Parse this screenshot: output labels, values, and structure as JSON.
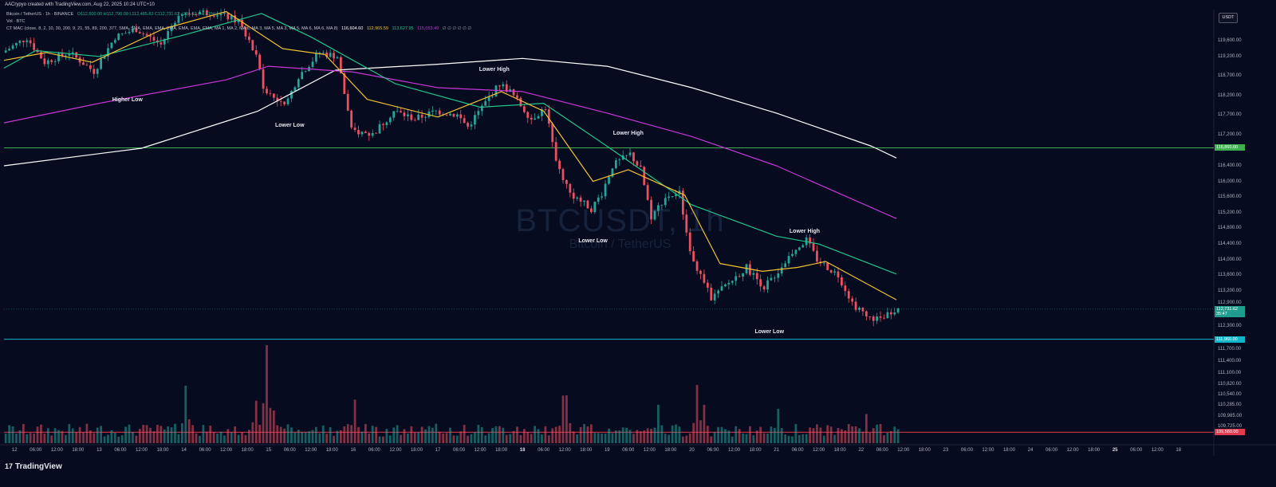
{
  "header": {
    "created_by": "AACrypyo created with TradingView.com, Aug 22, 2025 10:24 UTC+10",
    "symbol_line": "Bitcoin / TetherUS · 1h · BINANCE",
    "ohlc": "O112,500.00 H112,790.00 L112,485.82 C112,731.62 +231.62 (+0.21%)",
    "vol_line": "Vol · BTC",
    "indicator_line": "CT MAC (close, 8, 2, 10, 30, 200, 9, 21, 55, 89, 200, 377, SMA, SMA, EMA, EMA, EMA, EMA, EMA, EMA, MA 1, MA 2, MA 6, MA 3, MA 5, MA 3, MA 5, MA 6, MA 6, MA 8)",
    "indicator_values": [
      {
        "text": "116,604.60",
        "color": "#ffffff"
      },
      {
        "text": "112,965.59",
        "color": "#f2c12e"
      },
      {
        "text": "113,627.95",
        "color": "#22c58b"
      },
      {
        "text": "115,053.49",
        "color": "#c636d8"
      },
      {
        "text": "∅ ∅ ∅ ∅ ∅ ∅",
        "color": "#9aa0ad"
      }
    ]
  },
  "watermark": {
    "symbol": "BTCUSDT, 1h",
    "name": "Bitcoin / TetherUS"
  },
  "currency_button": "USDT",
  "annotations": [
    {
      "text": "Higher Low",
      "x": "2025-08-13T08:00",
      "y": 118070
    },
    {
      "text": "Lower Low",
      "x": "2025-08-15T06:00",
      "y": 117430
    },
    {
      "text": "Lower High",
      "x": "2025-08-17T16:00",
      "y": 118840
    },
    {
      "text": "Lower High",
      "x": "2025-08-19T06:00",
      "y": 117210
    },
    {
      "text": "Lower Low",
      "x": "2025-08-18T20:00",
      "y": 114460
    },
    {
      "text": "Lower High",
      "x": "2025-08-21T08:00",
      "y": 114710
    },
    {
      "text": "Lower Low",
      "x": "2025-08-20T22:00",
      "y": 112135
    }
  ],
  "chart_data": {
    "type": "candlestick",
    "symbol": "BTCUSDT",
    "interval": "1h",
    "exchange": "BINANCE",
    "ylim": [
      109300,
      120400
    ],
    "xlim": [
      "2025-08-11T21:00",
      "2025-08-26T04:00"
    ],
    "y_ticks": [
      "119,600.00",
      "119,200.00",
      "118,700.00",
      "118,200.00",
      "117,700.00",
      "117,200.00",
      "116,400.00",
      "116,000.00",
      "115,600.00",
      "115,200.00",
      "114,800.00",
      "114,400.00",
      "114,000.00",
      "113,600.00",
      "113,200.00",
      "112,900.00",
      "112,300.00",
      "111,700.00",
      "111,400.00",
      "111,100.00",
      "110,820.00",
      "110,540.00",
      "110,285.00",
      "109,985.00",
      "109,725.00"
    ],
    "x_ticks": [
      {
        "label": "12",
        "t": "2025-08-12T00:00",
        "day": false
      },
      {
        "label": "06:00",
        "t": "2025-08-12T06:00"
      },
      {
        "label": "12:00",
        "t": "2025-08-12T12:00"
      },
      {
        "label": "18:00",
        "t": "2025-08-12T18:00"
      },
      {
        "label": "13",
        "t": "2025-08-13T00:00"
      },
      {
        "label": "06:00",
        "t": "2025-08-13T06:00"
      },
      {
        "label": "12:00",
        "t": "2025-08-13T12:00"
      },
      {
        "label": "18:00",
        "t": "2025-08-13T18:00"
      },
      {
        "label": "14",
        "t": "2025-08-14T00:00"
      },
      {
        "label": "06:00",
        "t": "2025-08-14T06:00"
      },
      {
        "label": "12:00",
        "t": "2025-08-14T12:00"
      },
      {
        "label": "18:00",
        "t": "2025-08-14T18:00"
      },
      {
        "label": "15",
        "t": "2025-08-15T00:00"
      },
      {
        "label": "06:00",
        "t": "2025-08-15T06:00"
      },
      {
        "label": "12:00",
        "t": "2025-08-15T12:00"
      },
      {
        "label": "18:00",
        "t": "2025-08-15T18:00"
      },
      {
        "label": "16",
        "t": "2025-08-16T00:00"
      },
      {
        "label": "06:00",
        "t": "2025-08-16T06:00"
      },
      {
        "label": "12:00",
        "t": "2025-08-16T12:00"
      },
      {
        "label": "18:00",
        "t": "2025-08-16T18:00"
      },
      {
        "label": "17",
        "t": "2025-08-17T00:00"
      },
      {
        "label": "06:00",
        "t": "2025-08-17T06:00"
      },
      {
        "label": "12:00",
        "t": "2025-08-17T12:00"
      },
      {
        "label": "18:00",
        "t": "2025-08-17T18:00"
      },
      {
        "label": "18",
        "t": "2025-08-18T00:00",
        "day": true
      },
      {
        "label": "06:00",
        "t": "2025-08-18T06:00"
      },
      {
        "label": "12:00",
        "t": "2025-08-18T12:00"
      },
      {
        "label": "18:00",
        "t": "2025-08-18T18:00"
      },
      {
        "label": "19",
        "t": "2025-08-19T00:00"
      },
      {
        "label": "06:00",
        "t": "2025-08-19T06:00"
      },
      {
        "label": "12:00",
        "t": "2025-08-19T12:00"
      },
      {
        "label": "18:00",
        "t": "2025-08-19T18:00"
      },
      {
        "label": "20",
        "t": "2025-08-20T00:00"
      },
      {
        "label": "06:00",
        "t": "2025-08-20T06:00"
      },
      {
        "label": "12:00",
        "t": "2025-08-20T12:00"
      },
      {
        "label": "18:00",
        "t": "2025-08-20T18:00"
      },
      {
        "label": "21",
        "t": "2025-08-21T00:00"
      },
      {
        "label": "06:00",
        "t": "2025-08-21T06:00"
      },
      {
        "label": "12:00",
        "t": "2025-08-21T12:00"
      },
      {
        "label": "18:00",
        "t": "2025-08-21T18:00"
      },
      {
        "label": "22",
        "t": "2025-08-22T00:00"
      },
      {
        "label": "06:00",
        "t": "2025-08-22T06:00"
      },
      {
        "label": "12:00",
        "t": "2025-08-22T12:00"
      },
      {
        "label": "18:00",
        "t": "2025-08-22T18:00"
      },
      {
        "label": "23",
        "t": "2025-08-23T00:00"
      },
      {
        "label": "06:00",
        "t": "2025-08-23T06:00"
      },
      {
        "label": "12:00",
        "t": "2025-08-23T12:00"
      },
      {
        "label": "18:00",
        "t": "2025-08-23T18:00"
      },
      {
        "label": "24",
        "t": "2025-08-24T00:00"
      },
      {
        "label": "06:00",
        "t": "2025-08-24T06:00"
      },
      {
        "label": "12:00",
        "t": "2025-08-24T12:00"
      },
      {
        "label": "18:00",
        "t": "2025-08-24T18:00"
      },
      {
        "label": "25",
        "t": "2025-08-25T00:00",
        "day": true
      },
      {
        "label": "06:00",
        "t": "2025-08-25T06:00"
      },
      {
        "label": "12:00",
        "t": "2025-08-25T12:00"
      },
      {
        "label": "18",
        "t": "2025-08-25T18:00"
      }
    ],
    "horizontal_levels": [
      {
        "price": 116860,
        "label": "116,860.00",
        "color": "#3fb04f"
      },
      {
        "price": 111960,
        "label": "111,960.00",
        "color": "#12b5c8"
      },
      {
        "price": 109580,
        "label": "109,580.00",
        "color": "#e23b4f"
      }
    ],
    "current_price": {
      "price": 112731.62,
      "label": "112,731.62",
      "countdown": "35:47",
      "color": "#1f9e8f"
    },
    "price_path": [
      {
        "t": "2025-08-11T21:00",
        "p": 119300
      },
      {
        "t": "2025-08-12T04:00",
        "p": 119680
      },
      {
        "t": "2025-08-12T09:00",
        "p": 119050
      },
      {
        "t": "2025-08-12T16:00",
        "p": 119300
      },
      {
        "t": "2025-08-12T23:00",
        "p": 118820
      },
      {
        "t": "2025-08-13T05:00",
        "p": 119700
      },
      {
        "t": "2025-08-13T11:00",
        "p": 119900
      },
      {
        "t": "2025-08-13T18:00",
        "p": 119500
      },
      {
        "t": "2025-08-13T23:00",
        "p": 120300
      },
      {
        "t": "2025-08-14T04:00",
        "p": 120350
      },
      {
        "t": "2025-08-14T10:00",
        "p": 120300
      },
      {
        "t": "2025-08-14T16:00",
        "p": 120100
      },
      {
        "t": "2025-08-14T21:00",
        "p": 119200
      },
      {
        "t": "2025-08-14T23:00",
        "p": 118400
      },
      {
        "t": "2025-08-15T05:00",
        "p": 117900
      },
      {
        "t": "2025-08-15T09:00",
        "p": 118700
      },
      {
        "t": "2025-08-15T15:00",
        "p": 119300
      },
      {
        "t": "2025-08-15T20:00",
        "p": 119200
      },
      {
        "t": "2025-08-16T00:00",
        "p": 117300
      },
      {
        "t": "2025-08-16T06:00",
        "p": 117200
      },
      {
        "t": "2025-08-16T12:00",
        "p": 117800
      },
      {
        "t": "2025-08-16T18:00",
        "p": 117600
      },
      {
        "t": "2025-08-17T00:00",
        "p": 117800
      },
      {
        "t": "2025-08-17T06:00",
        "p": 117700
      },
      {
        "t": "2025-08-17T09:00",
        "p": 117400
      },
      {
        "t": "2025-08-17T13:00",
        "p": 117900
      },
      {
        "t": "2025-08-17T18:00",
        "p": 118500
      },
      {
        "t": "2025-08-17T21:00",
        "p": 118300
      },
      {
        "t": "2025-08-18T03:00",
        "p": 117600
      },
      {
        "t": "2025-08-18T07:00",
        "p": 117900
      },
      {
        "t": "2025-08-18T10:00",
        "p": 116500
      },
      {
        "t": "2025-08-18T14:00",
        "p": 115700
      },
      {
        "t": "2025-08-18T20:00",
        "p": 115300
      },
      {
        "t": "2025-08-18T23:00",
        "p": 115700
      },
      {
        "t": "2025-08-19T02:00",
        "p": 116400
      },
      {
        "t": "2025-08-19T07:00",
        "p": 116700
      },
      {
        "t": "2025-08-19T10:00",
        "p": 116300
      },
      {
        "t": "2025-08-19T13:00",
        "p": 115100
      },
      {
        "t": "2025-08-19T17:00",
        "p": 115600
      },
      {
        "t": "2025-08-19T21:00",
        "p": 115700
      },
      {
        "t": "2025-08-20T00:00",
        "p": 114200
      },
      {
        "t": "2025-08-20T06:00",
        "p": 113000
      },
      {
        "t": "2025-08-20T11:00",
        "p": 113400
      },
      {
        "t": "2025-08-20T16:00",
        "p": 113800
      },
      {
        "t": "2025-08-20T21:00",
        "p": 113300
      },
      {
        "t": "2025-08-21T01:00",
        "p": 113700
      },
      {
        "t": "2025-08-21T05:00",
        "p": 114200
      },
      {
        "t": "2025-08-21T09:00",
        "p": 114500
      },
      {
        "t": "2025-08-21T12:00",
        "p": 114000
      },
      {
        "t": "2025-08-21T18:00",
        "p": 113600
      },
      {
        "t": "2025-08-21T22:00",
        "p": 112900
      },
      {
        "t": "2025-08-22T02:00",
        "p": 112500
      },
      {
        "t": "2025-08-22T06:00",
        "p": 112500
      },
      {
        "t": "2025-08-22T10:00",
        "p": 112732
      }
    ],
    "series": [
      {
        "name": "MA 1",
        "color": "#ffffff",
        "points": [
          {
            "t": "2025-08-11T21:00",
            "p": 116400
          },
          {
            "t": "2025-08-13T12:00",
            "p": 116850
          },
          {
            "t": "2025-08-14T21:00",
            "p": 117800
          },
          {
            "t": "2025-08-15T19:00",
            "p": 118850
          },
          {
            "t": "2025-08-17T00:00",
            "p": 119000
          },
          {
            "t": "2025-08-18T00:00",
            "p": 119150
          },
          {
            "t": "2025-08-19T00:00",
            "p": 118950
          },
          {
            "t": "2025-08-20T00:00",
            "p": 118400
          },
          {
            "t": "2025-08-21T00:00",
            "p": 117750
          },
          {
            "t": "2025-08-22T03:00",
            "p": 116900
          },
          {
            "t": "2025-08-22T10:00",
            "p": 116600
          }
        ]
      },
      {
        "name": "MA 2",
        "color": "#c636d8",
        "points": [
          {
            "t": "2025-08-11T21:00",
            "p": 117500
          },
          {
            "t": "2025-08-13T00:00",
            "p": 118000
          },
          {
            "t": "2025-08-14T12:00",
            "p": 118600
          },
          {
            "t": "2025-08-15T00:00",
            "p": 118950
          },
          {
            "t": "2025-08-16T00:00",
            "p": 118800
          },
          {
            "t": "2025-08-17T00:00",
            "p": 118400
          },
          {
            "t": "2025-08-18T00:00",
            "p": 118300
          },
          {
            "t": "2025-08-19T00:00",
            "p": 117750
          },
          {
            "t": "2025-08-20T00:00",
            "p": 117150
          },
          {
            "t": "2025-08-21T00:00",
            "p": 116400
          },
          {
            "t": "2025-08-22T10:00",
            "p": 115050
          }
        ]
      },
      {
        "name": "MA 3",
        "color": "#22c58b",
        "points": [
          {
            "t": "2025-08-11T21:00",
            "p": 118900
          },
          {
            "t": "2025-08-12T06:00",
            "p": 119350
          },
          {
            "t": "2025-08-13T00:00",
            "p": 119200
          },
          {
            "t": "2025-08-14T00:00",
            "p": 119750
          },
          {
            "t": "2025-08-14T22:00",
            "p": 120300
          },
          {
            "t": "2025-08-15T12:00",
            "p": 119700
          },
          {
            "t": "2025-08-16T12:00",
            "p": 118500
          },
          {
            "t": "2025-08-17T12:00",
            "p": 117900
          },
          {
            "t": "2025-08-18T06:00",
            "p": 118000
          },
          {
            "t": "2025-08-19T00:00",
            "p": 116900
          },
          {
            "t": "2025-08-20T00:00",
            "p": 115400
          },
          {
            "t": "2025-08-21T00:00",
            "p": 114600
          },
          {
            "t": "2025-08-21T12:00",
            "p": 114400
          },
          {
            "t": "2025-08-22T10:00",
            "p": 113630
          }
        ]
      },
      {
        "name": "MA 4",
        "color": "#f2c12e",
        "points": [
          {
            "t": "2025-08-11T21:00",
            "p": 119100
          },
          {
            "t": "2025-08-12T09:00",
            "p": 119300
          },
          {
            "t": "2025-08-12T22:00",
            "p": 119050
          },
          {
            "t": "2025-08-13T18:00",
            "p": 119900
          },
          {
            "t": "2025-08-14T12:00",
            "p": 120350
          },
          {
            "t": "2025-08-15T04:00",
            "p": 119400
          },
          {
            "t": "2025-08-15T16:00",
            "p": 119250
          },
          {
            "t": "2025-08-16T04:00",
            "p": 118100
          },
          {
            "t": "2025-08-17T00:00",
            "p": 117650
          },
          {
            "t": "2025-08-17T18:00",
            "p": 118300
          },
          {
            "t": "2025-08-18T06:00",
            "p": 117800
          },
          {
            "t": "2025-08-18T20:00",
            "p": 116000
          },
          {
            "t": "2025-08-19T06:00",
            "p": 116300
          },
          {
            "t": "2025-08-19T22:00",
            "p": 115650
          },
          {
            "t": "2025-08-20T08:00",
            "p": 113900
          },
          {
            "t": "2025-08-20T20:00",
            "p": 113700
          },
          {
            "t": "2025-08-21T06:00",
            "p": 113800
          },
          {
            "t": "2025-08-21T14:00",
            "p": 113950
          },
          {
            "t": "2025-08-22T10:00",
            "p": 112970
          }
        ]
      }
    ],
    "volume": {
      "spikes": [
        {
          "t": "2025-08-14T23:00",
          "v": 1.0
        },
        {
          "t": "2025-08-14T20:00",
          "v": 0.48
        },
        {
          "t": "2025-08-15T01:00",
          "v": 0.35
        },
        {
          "t": "2025-08-14T00:00",
          "v": 0.56
        },
        {
          "t": "2025-08-16T00:00",
          "v": 0.42
        },
        {
          "t": "2025-08-18T11:00",
          "v": 0.46
        },
        {
          "t": "2025-08-18T12:00",
          "v": 0.5
        },
        {
          "t": "2025-08-19T14:00",
          "v": 0.4
        },
        {
          "t": "2025-08-20T01:00",
          "v": 0.55
        },
        {
          "t": "2025-08-20T03:00",
          "v": 0.4
        },
        {
          "t": "2025-08-21T00:00",
          "v": 0.35
        },
        {
          "t": "2025-08-22T01:00",
          "v": 0.28
        }
      ]
    }
  },
  "branding": {
    "logo": "17",
    "name": "TradingView"
  }
}
